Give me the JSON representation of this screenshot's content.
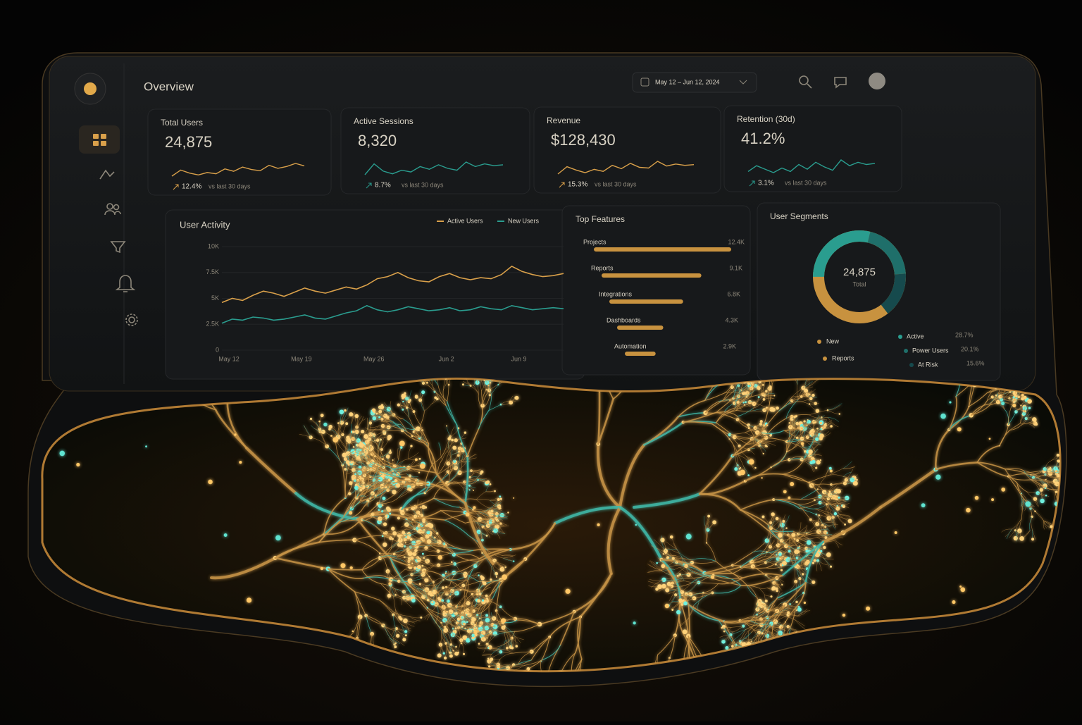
{
  "header": {
    "title": "Overview",
    "date_range": "May 12 – Jun 12, 2024"
  },
  "kpis": [
    {
      "title": "Total Users",
      "value": "24,875",
      "change": "12.4%",
      "comparison": "vs last 30 days",
      "spark": [
        3,
        4,
        3.5,
        3.2,
        3.6,
        3.4,
        4.2,
        3.8,
        4.5,
        4.1,
        3.9,
        4.8,
        4.3,
        4.6,
        5.1,
        4.7
      ]
    },
    {
      "title": "Active Sessions",
      "value": "8,320",
      "change": "8.7%",
      "comparison": "vs last 30 days",
      "spark": [
        3,
        4.2,
        3.4,
        3.1,
        3.5,
        3.3,
        3.9,
        3.6,
        4.1,
        3.7,
        3.5,
        4.4,
        3.9,
        4.2,
        4.0,
        4.1
      ]
    },
    {
      "title": "Revenue",
      "value": "$128,430",
      "change": "15.3%",
      "comparison": "vs last 30 days",
      "spark": [
        3,
        4.1,
        3.6,
        3.2,
        3.7,
        3.4,
        4.3,
        3.8,
        4.6,
        4.0,
        3.9,
        4.9,
        4.2,
        4.5,
        4.3,
        4.4
      ]
    },
    {
      "title": "Retention (30d)",
      "value": "41.2%",
      "change": "3.1%",
      "comparison": "vs last 30 days",
      "spark": [
        3.5,
        4.0,
        3.7,
        3.4,
        3.8,
        3.5,
        4.1,
        3.7,
        4.3,
        3.9,
        3.6,
        4.5,
        4.0,
        4.3,
        4.1,
        4.2
      ]
    }
  ],
  "chart_data": [
    {
      "type": "line",
      "title": "User Activity",
      "categories": [
        "May 12",
        null,
        null,
        null,
        null,
        null,
        null,
        "May 19",
        null,
        null,
        null,
        null,
        null,
        null,
        "May 26",
        null,
        null,
        null,
        null,
        null,
        null,
        "Jun 2",
        null,
        null,
        null,
        null,
        null,
        null,
        "Jun 9",
        null,
        null,
        null,
        null,
        null
      ],
      "ylim": [
        0,
        10000
      ],
      "yticks": [
        0,
        {
          "value": 2500,
          "label": "2.5K"
        },
        {
          "value": 5000,
          "label": "5K"
        },
        {
          "value": 7500,
          "label": "7.5K"
        },
        {
          "value": 10000,
          "label": "10K"
        }
      ],
      "series": [
        {
          "name": "Active Users",
          "color": "#d9a04a",
          "values": [
            4600,
            5000,
            4800,
            5300,
            5700,
            5500,
            5200,
            5600,
            6000,
            5700,
            5500,
            5800,
            6100,
            5900,
            6300,
            6900,
            7100,
            7500,
            7000,
            6700,
            6600,
            7100,
            7400,
            7000,
            6800,
            7000,
            6900,
            7300,
            8100,
            7600,
            7300,
            7100,
            7200,
            7400
          ]
        },
        {
          "name": "New Users",
          "color": "#2a9d8f",
          "values": [
            2600,
            3000,
            2900,
            3200,
            3100,
            2900,
            3000,
            3200,
            3400,
            3100,
            3000,
            3300,
            3600,
            3800,
            4300,
            3900,
            3700,
            3900,
            4200,
            4000,
            3800,
            3900,
            4100,
            3800,
            3900,
            4200,
            4000,
            3900,
            4300,
            4100,
            3900,
            4000,
            4100,
            4000
          ]
        }
      ]
    },
    {
      "type": "hbar",
      "title": "Top Features",
      "categories": [
        "Projects",
        "Reports",
        "Integrations",
        "Dashboards",
        "Automation"
      ],
      "values": [
        12400,
        9100,
        6800,
        4300,
        2900
      ],
      "value_labels": [
        "12.4K",
        "9.1K",
        "6.8K",
        "4.3K",
        "2.9K"
      ],
      "xlim": [
        0,
        12400
      ],
      "color": "#c8923f"
    },
    {
      "type": "donut",
      "title": "User Segments",
      "center_value": "24,875",
      "center_label": "Total",
      "categories": [
        "Active",
        "Power Users",
        "At Risk"
      ],
      "values": [
        28.7,
        20.1,
        15.6
      ],
      "value_labels": [
        "28.7%",
        "20.1%",
        "15.6%"
      ],
      "colors": [
        "#2a9d8f",
        "#1f6f6a",
        "#164a4d"
      ],
      "other_legend": [
        "New",
        "Reports"
      ],
      "other_color": "#c8923f"
    }
  ]
}
